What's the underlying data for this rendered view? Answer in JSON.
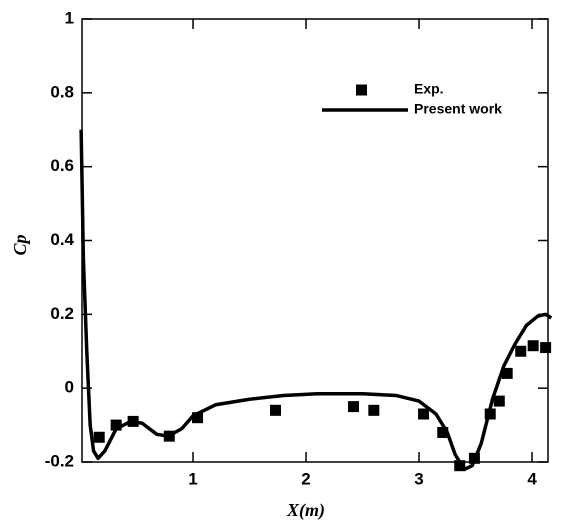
{
  "chart_data": {
    "type": "line",
    "x_label": "X(m)",
    "y_label": "Cp",
    "xlim": [
      0,
      4.15
    ],
    "ylim": [
      -0.2,
      1
    ],
    "xticks": [
      1,
      2,
      3,
      4
    ],
    "yticks": [
      -0.2,
      0,
      0.2,
      0.4,
      0.6,
      0.8,
      1
    ],
    "legend": "upper right",
    "series": [
      {
        "name": "Exp.",
        "color": "#000000",
        "marker": "square",
        "x": [
          0.17,
          0.32,
          0.47,
          0.79,
          1.04,
          1.73,
          2.42,
          2.6,
          3.04,
          3.21,
          3.36,
          3.49,
          3.63,
          3.71,
          3.78,
          3.9,
          4.01,
          4.12
        ],
        "values": [
          -0.133,
          -0.1,
          -0.09,
          -0.13,
          -0.08,
          -0.06,
          -0.05,
          -0.06,
          -0.07,
          -0.12,
          -0.21,
          -0.19,
          -0.07,
          -0.035,
          0.04,
          0.1,
          0.115,
          0.11
        ]
      },
      {
        "name": "Present work",
        "color": "#000000",
        "marker": "line",
        "x": [
          0.01,
          0.03,
          0.06,
          0.09,
          0.12,
          0.16,
          0.22,
          0.32,
          0.45,
          0.55,
          0.68,
          0.78,
          0.9,
          1.0,
          1.2,
          1.5,
          1.8,
          2.1,
          2.5,
          2.8,
          3.0,
          3.15,
          3.25,
          3.32,
          3.4,
          3.47,
          3.55,
          3.65,
          3.75,
          3.85,
          3.95,
          4.05,
          4.12,
          4.17
        ],
        "values": [
          0.7,
          0.35,
          0.1,
          -0.1,
          -0.17,
          -0.19,
          -0.17,
          -0.11,
          -0.09,
          -0.095,
          -0.125,
          -0.13,
          -0.11,
          -0.075,
          -0.045,
          -0.03,
          -0.02,
          -0.015,
          -0.015,
          -0.02,
          -0.035,
          -0.07,
          -0.12,
          -0.18,
          -0.22,
          -0.21,
          -0.15,
          -0.03,
          0.06,
          0.12,
          0.17,
          0.195,
          0.2,
          0.19
        ]
      }
    ]
  }
}
